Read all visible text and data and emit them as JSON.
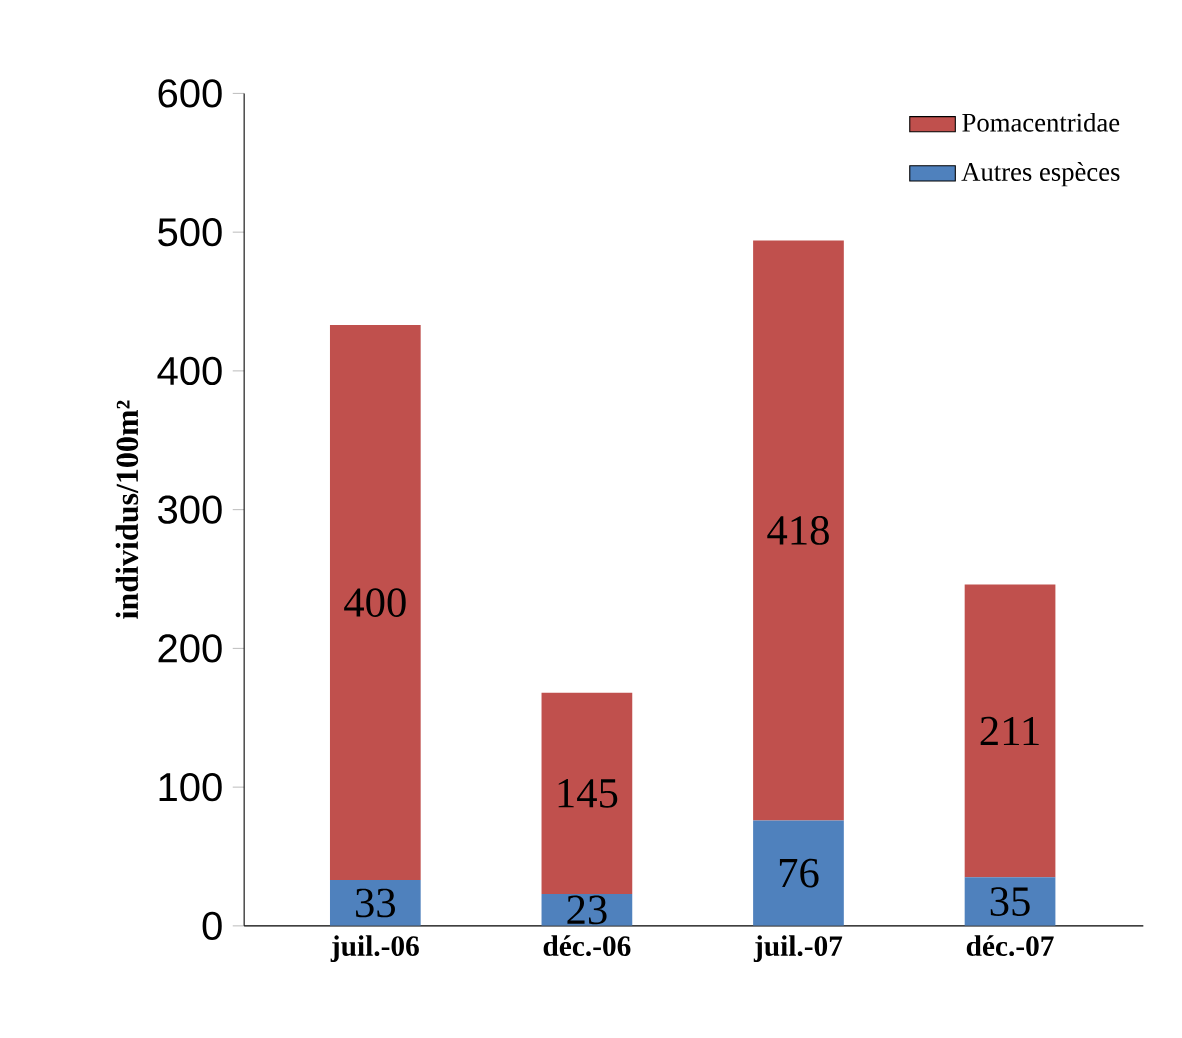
{
  "chart_data": {
    "type": "bar",
    "stacked": true,
    "categories": [
      "juil.-06",
      "déc.-06",
      "juil.-07",
      "déc.-07"
    ],
    "ylabel": "individus/100m²",
    "series": [
      {
        "name": "Autres espèces",
        "color": "#4f81bd",
        "values": [
          33,
          23,
          76,
          35
        ]
      },
      {
        "name": "Pomacentridae",
        "color": "#c0504d",
        "values": [
          400,
          145,
          418,
          211
        ]
      }
    ],
    "ylim": [
      0,
      600
    ],
    "yticks": [
      0,
      100,
      200,
      300,
      400,
      500,
      600
    ],
    "data_labels": true,
    "legend": "top right",
    "grid": false
  }
}
